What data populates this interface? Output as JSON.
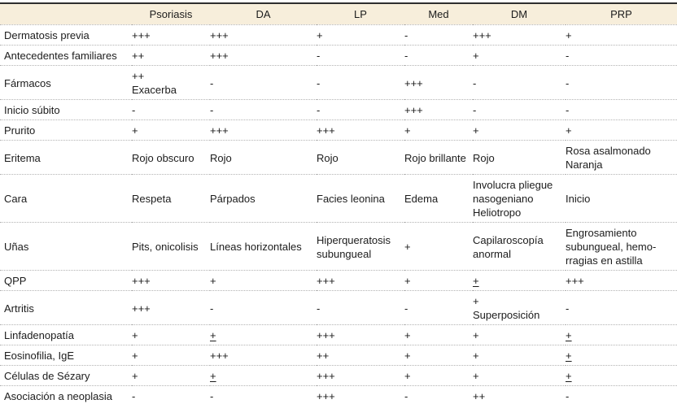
{
  "colors": {
    "top_border": "#2f2f2f",
    "header_bg": "#f7eedb",
    "divider": "#b3b3b3",
    "bottom_border": "#b5b5b5",
    "text": "#1c1c1c"
  },
  "table": {
    "columns": [
      "",
      "Psoriasis",
      "DA",
      "LP",
      "Med",
      "DM",
      "PRP"
    ],
    "rows": [
      {
        "label": "Dermatosis previa",
        "cells": [
          "+++",
          "+++",
          "+",
          "-",
          "+++",
          "+"
        ]
      },
      {
        "label": "Antecedentes familiares",
        "cells": [
          "++",
          "+++",
          "-",
          "-",
          "+",
          "-"
        ]
      },
      {
        "label": "Fármacos",
        "cells": [
          "++\nExacerba",
          "-",
          "-",
          "+++",
          "-",
          "-"
        ]
      },
      {
        "label": "Inicio súbito",
        "cells": [
          "-",
          "-",
          "-",
          "+++",
          "-",
          "-"
        ]
      },
      {
        "label": "Prurito",
        "cells": [
          "+",
          "+++",
          "+++",
          "+",
          "+",
          "+"
        ]
      },
      {
        "label": "Eritema",
        "cells": [
          "Rojo obscuro",
          "Rojo",
          "Rojo",
          "Rojo brillante",
          "Rojo",
          "Rosa asalmonado\nNaranja"
        ]
      },
      {
        "label": "Cara",
        "cells": [
          "Respeta",
          "Párpados",
          "Facies leonina",
          "Edema",
          "Involucra pliegue nasogeniano\nHeliotropo",
          "Inicio"
        ]
      },
      {
        "label": "Uñas",
        "cells": [
          "Pits, onicolisis",
          "Líneas horizontales",
          "Hiperqueratosis subungueal",
          "+",
          "Capilaroscopía anormal",
          "Engrosamiento subungueal, hemo-\nrragias en astilla"
        ]
      },
      {
        "label": "QPP",
        "cells": [
          "+++",
          "+",
          "+++",
          "+",
          "±",
          "+++"
        ]
      },
      {
        "label": "Artritis",
        "cells": [
          "+++",
          "-",
          "-",
          "-",
          "+\nSuperposición",
          "-"
        ]
      },
      {
        "label": "Linfadenopatía",
        "cells": [
          "+",
          "±",
          "+++",
          "+",
          "+",
          "±"
        ]
      },
      {
        "label": "Eosinofilia, IgE",
        "cells": [
          "+",
          "+++",
          "++",
          "+",
          "+",
          "±"
        ]
      },
      {
        "label": "Células de Sézary",
        "cells": [
          "+",
          "±",
          "+++",
          "+",
          "+",
          "±"
        ]
      },
      {
        "label": "Asociación a neoplasia",
        "cells": [
          "-",
          "-",
          "+++",
          "-",
          "++",
          "-"
        ]
      }
    ]
  }
}
